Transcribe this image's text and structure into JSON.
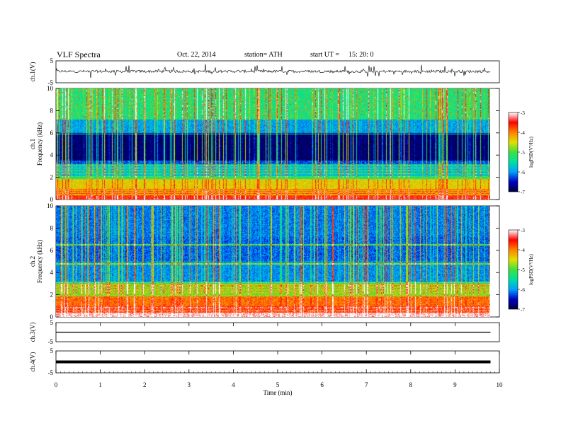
{
  "header": {
    "title": "VLF  Spectra",
    "date": "Oct. 22, 2014",
    "station": "station= ATH",
    "start_label": "start  UT  =",
    "start_value": "15: 20: 0"
  },
  "chart_data": [
    {
      "type": "line",
      "panel": "ch1-waveform",
      "ylabel": "ch.1(V)",
      "ylim": [
        -5,
        5
      ],
      "yticks": [
        "5",
        "-5"
      ],
      "description_level": 0.2,
      "xlim": [
        0,
        10
      ]
    },
    {
      "type": "heatmap",
      "panel": "ch1-spectrogram",
      "ylabel_lines": [
        "ch.1",
        "Frequency  (kHz)"
      ],
      "ylim": [
        0,
        10
      ],
      "yticks": [
        "0",
        "2",
        "4",
        "6",
        "8",
        "10"
      ],
      "xlim": [
        0,
        9.8
      ],
      "colorbar_label": "logPSD(V²/Hz)",
      "colorbar_ticks": [
        "-3",
        "-4",
        "-5",
        "-6",
        "-7"
      ],
      "colorbar_range": [
        -7,
        -3
      ],
      "colorscale": [
        "#000040",
        "#0000c0",
        "#00a0ff",
        "#00e0a0",
        "#40e040",
        "#e0e000",
        "#ff8000",
        "#ff0000",
        "#ffffff"
      ]
    },
    {
      "type": "heatmap",
      "panel": "ch2-spectrogram",
      "ylabel_lines": [
        "ch.2",
        "Frequency  (kHz)"
      ],
      "ylim": [
        0,
        10
      ],
      "yticks": [
        "0",
        "2",
        "4",
        "6",
        "8",
        "10"
      ],
      "xlim": [
        0,
        9.8
      ],
      "colorbar_label": "logPSD(V²/Hz)",
      "colorbar_ticks": [
        "-3",
        "-4",
        "-5",
        "-6",
        "-7"
      ],
      "colorbar_range": [
        -7,
        -3
      ],
      "colorscale": [
        "#000040",
        "#0000c0",
        "#00a0ff",
        "#00e0a0",
        "#40e040",
        "#e0e000",
        "#ff8000",
        "#ff0000",
        "#ffffff"
      ]
    },
    {
      "type": "line",
      "panel": "ch3-waveform",
      "ylabel": "ch.3(V)",
      "ylim": [
        -5,
        5
      ],
      "yticks": [
        "5",
        "-5"
      ],
      "level": 0.0
    },
    {
      "type": "line",
      "panel": "ch4-waveform",
      "ylabel": "ch.4(V)",
      "ylim": [
        -5,
        5
      ],
      "yticks": [
        "5",
        "-5"
      ],
      "level": 0.0
    }
  ],
  "xaxis": {
    "label": "Time  (min)",
    "ticks": [
      "0",
      "1",
      "2",
      "3",
      "4",
      "5",
      "6",
      "7",
      "8",
      "9",
      "10"
    ],
    "range": [
      0,
      10
    ]
  }
}
